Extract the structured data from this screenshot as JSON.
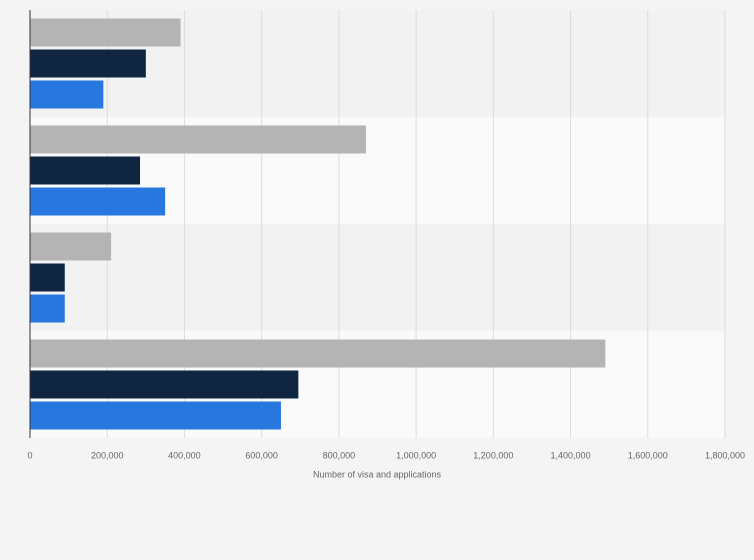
{
  "chart_data": {
    "type": "bar",
    "orientation": "horizontal",
    "x_label": "Number of visa and applications",
    "categories": [
      null,
      null,
      null,
      null
    ],
    "series": [
      {
        "color": "#b4b4b4",
        "values": [
          390000,
          870000,
          210000,
          1490000
        ]
      },
      {
        "color": "#0f2540",
        "values": [
          300000,
          285000,
          90000,
          695000
        ]
      },
      {
        "color": "#2877df",
        "values": [
          190000,
          350000,
          90000,
          650000
        ]
      }
    ],
    "xlim": [
      0,
      1800000
    ],
    "xticks": [
      0,
      {
        "value": 200000,
        "label": "200,000"
      },
      {
        "value": 400000,
        "label": "400,000"
      },
      {
        "value": 600000,
        "label": "600,000"
      },
      {
        "value": 800000,
        "label": "800,000"
      },
      {
        "value": 1000000,
        "label": "1,000,000"
      },
      {
        "value": 1200000,
        "label": "1,200,000"
      },
      {
        "value": 1400000,
        "label": "1,400,000"
      },
      {
        "value": 1600000,
        "label": "1,600,000"
      },
      {
        "value": 1800000,
        "label": "1,800,000"
      }
    ],
    "grid": true
  }
}
